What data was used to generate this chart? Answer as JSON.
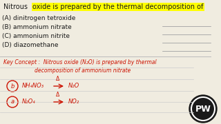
{
  "bg_color": "#f0ece0",
  "title_text": "Nitrous oxide is prepared by the thermal decomposition of",
  "highlight_color": "#ffff00",
  "title_color": "#1a1a1a",
  "options": [
    "(A) dinitrogen tetroxide",
    "(B) ammonium nitrate",
    "(C) ammonium nitrite",
    "(D) diazomethane"
  ],
  "option_color": "#1a1a1a",
  "key_color": "#cc1100",
  "key_line1": "Key Concept :  Nitrous oxide (N₂O) is prepared by thermal",
  "key_line2": "decomposition of ammonium nitrate",
  "r1_letter": "b",
  "r1_formula": "NH₄NO₃",
  "r1_product": "N₂O",
  "r2_letter": "a",
  "r2_formula": "N₂O₄",
  "r2_product": "NO₂",
  "logo_color": "#1a1a1a",
  "logo_text": "PW"
}
